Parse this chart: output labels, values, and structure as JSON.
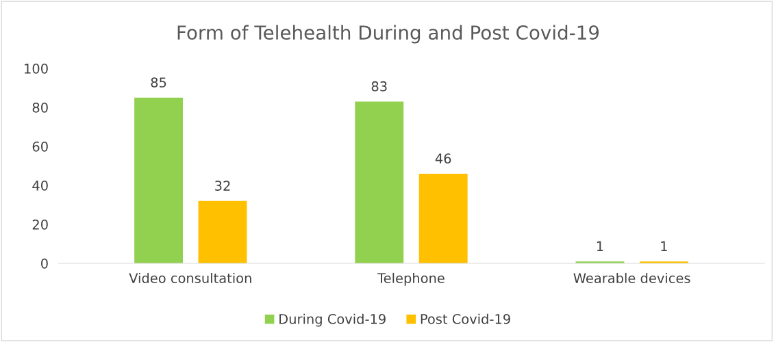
{
  "chart_data": {
    "type": "bar",
    "title": "Form of Telehealth During and Post Covid-19",
    "categories": [
      "Video consultation",
      "Telephone",
      "Wearable devices"
    ],
    "series": [
      {
        "name": "During Covid-19",
        "color": "#92d050",
        "values": [
          85,
          83,
          1
        ]
      },
      {
        "name": "Post Covid-19",
        "color": "#ffc000",
        "values": [
          32,
          46,
          1
        ]
      }
    ],
    "ylim": [
      0,
      100
    ],
    "yticks": [
      0,
      20,
      40,
      60,
      80,
      100
    ],
    "grid": false,
    "legend": "bottom",
    "data_labels": true
  }
}
